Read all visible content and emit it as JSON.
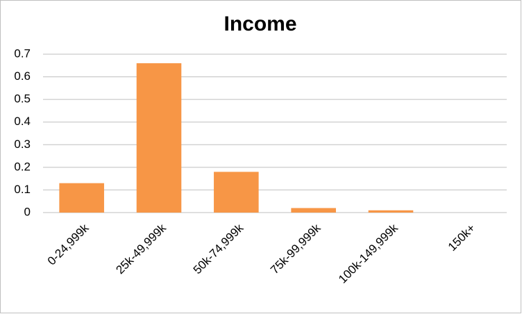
{
  "chart_data": {
    "type": "bar",
    "title": "Income",
    "categories": [
      "0-24,999k",
      "25k-49,999k",
      "50k-74,999k",
      "75k-99,999k",
      "100k-149,999k",
      "150k+"
    ],
    "values": [
      0.13,
      0.66,
      0.18,
      0.02,
      0.01,
      0
    ],
    "color": "#f79646",
    "ylim": [
      0,
      0.7
    ],
    "yticks": [
      0,
      0.1,
      0.2,
      0.3,
      0.4,
      0.5,
      0.6,
      0.7
    ],
    "grid": true
  }
}
